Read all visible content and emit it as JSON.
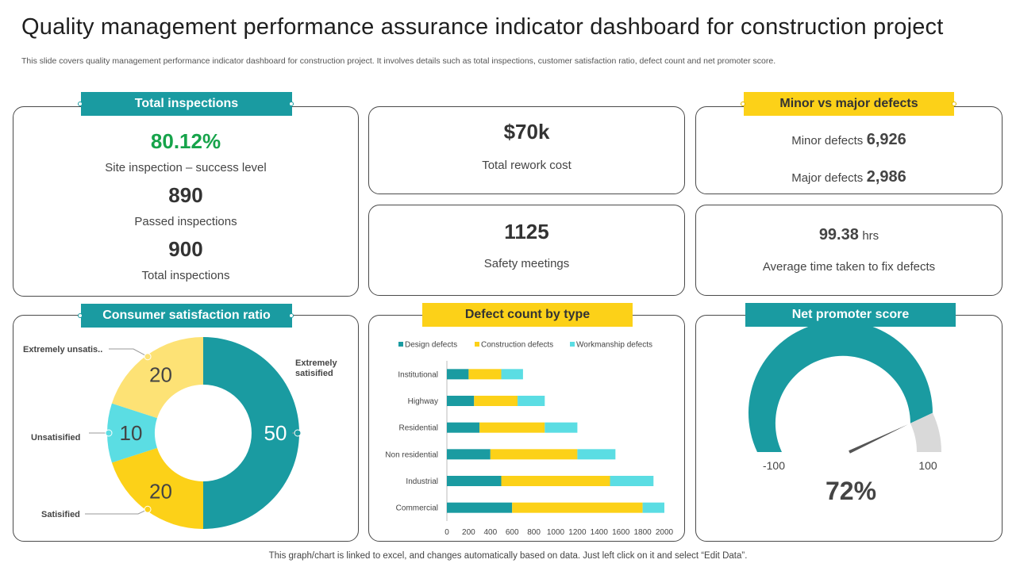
{
  "header": {
    "title": "Quality management performance assurance indicator dashboard for construction project",
    "subtitle": "This slide covers quality management performance indicator dashboard for construction project. It involves details such as total inspections, customer satisfaction ratio, defect count and net promoter score."
  },
  "total_inspections": {
    "tag": "Total inspections",
    "success_value": "80.12%",
    "success_label": "Site inspection – success level",
    "passed_value": "890",
    "passed_label": "Passed inspections",
    "total_value": "900",
    "total_label": "Total inspections"
  },
  "rework": {
    "value": "$70k",
    "label": "Total rework cost"
  },
  "safety": {
    "value": "1125",
    "label": "Safety meetings"
  },
  "defects": {
    "tag": "Minor vs major defects",
    "minor_label": "Minor defects",
    "minor_value": "6,926",
    "major_label": "Major defects",
    "major_value": "2,986"
  },
  "fix_time": {
    "value": "99.38",
    "unit": "hrs",
    "label": "Average time taken to fix defects"
  },
  "colors": {
    "teal": "#1a9ba1",
    "yellow": "#fcd118",
    "light_yellow": "#fde275",
    "cyan": "#5bdde3",
    "gray": "#d9d9d9"
  },
  "chart_data": [
    {
      "type": "pie",
      "title": "Consumer satisfaction ratio",
      "labels": [
        "Extremely satisified",
        "Satisified",
        "Unsatisified",
        "Extremely unsatis.."
      ],
      "values": [
        50,
        20,
        10,
        20
      ],
      "colors": [
        "#1a9ba1",
        "#fcd118",
        "#5bdde3",
        "#fde275"
      ]
    },
    {
      "type": "bar",
      "orientation": "horizontal",
      "stacked": true,
      "title": "Defect count by type",
      "categories": [
        "Commercial",
        "Industrial",
        "Non residential",
        "Residential",
        "Highway",
        "Institutional"
      ],
      "series": [
        {
          "name": "Design defects",
          "color": "#1a9ba1",
          "values": [
            600,
            500,
            400,
            300,
            250,
            200
          ]
        },
        {
          "name": "Construction defects",
          "color": "#fcd118",
          "values": [
            1200,
            1000,
            800,
            600,
            400,
            300
          ]
        },
        {
          "name": "Workmanship defects",
          "color": "#5bdde3",
          "values": [
            200,
            400,
            350,
            300,
            250,
            200
          ]
        }
      ],
      "xticks": [
        "0",
        "200",
        "400",
        "600",
        "800",
        "1000",
        "1200",
        "1400",
        "1600",
        "1800",
        "2000"
      ],
      "xlim": [
        0,
        2000
      ],
      "legend": "top"
    },
    {
      "type": "gauge",
      "title": "Net promoter score",
      "min": -100,
      "max": 100,
      "min_label": "-100",
      "max_label": "100",
      "value": 72,
      "value_label": "72%"
    }
  ]
}
